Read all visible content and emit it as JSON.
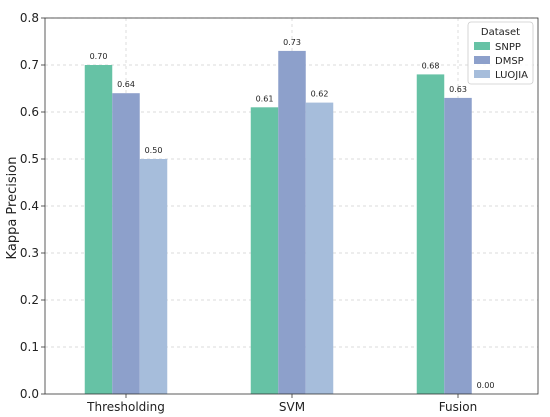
{
  "chart_data": {
    "type": "bar",
    "title": "",
    "xlabel": "",
    "ylabel": "Kappa Precision",
    "categories": [
      "Thresholding",
      "SVM",
      "Fusion"
    ],
    "series": [
      {
        "name": "SNPP",
        "values": [
          0.7,
          0.61,
          0.68
        ],
        "labels": [
          "0.70",
          "0.61",
          "0.68"
        ],
        "color": "#66c2a5"
      },
      {
        "name": "DMSP",
        "values": [
          0.64,
          0.73,
          0.63
        ],
        "labels": [
          "0.64",
          "0.73",
          "0.63"
        ],
        "color": "#8da0cb"
      },
      {
        "name": "LUOJIA",
        "values": [
          0.5,
          0.62,
          0.0
        ],
        "labels": [
          "0.50",
          "0.62",
          "0.00"
        ],
        "color": "#a6bddb"
      }
    ],
    "ylim": [
      0,
      0.8
    ],
    "yticks": [
      "0.0",
      "0.1",
      "0.2",
      "0.3",
      "0.4",
      "0.5",
      "0.6",
      "0.7",
      "0.8"
    ],
    "grid": true,
    "legend": {
      "title": "Dataset",
      "placement": "top-right"
    }
  }
}
